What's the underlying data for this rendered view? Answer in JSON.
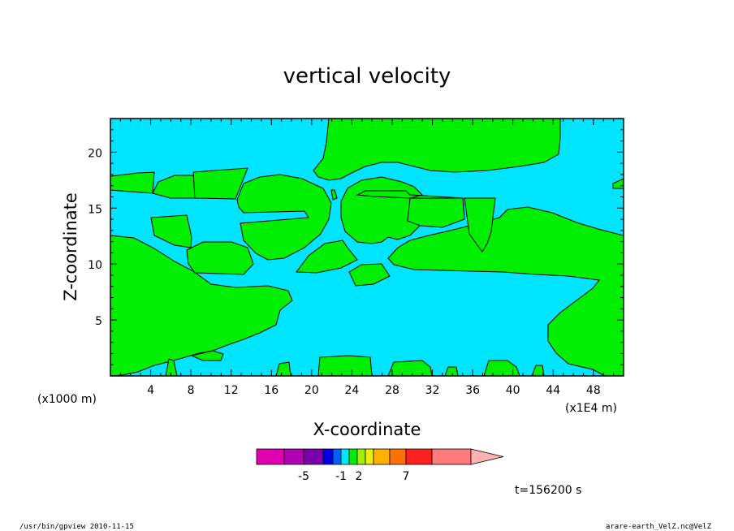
{
  "chart_data": {
    "type": "contour",
    "title": "vertical velocity",
    "xlabel": "X-coordinate",
    "ylabel": "Z-coordinate",
    "x_unit": "(x1E4 m)",
    "y_unit": "(x1000 m)",
    "xlim": [
      0,
      51
    ],
    "ylim": [
      0,
      23
    ],
    "x_ticks": [
      4,
      8,
      12,
      16,
      20,
      24,
      28,
      32,
      36,
      40,
      44,
      48
    ],
    "y_ticks": [
      5,
      10,
      15,
      20
    ],
    "fill_colors": {
      "negative_region": "#00e5ff",
      "positive_region": "#00ee00"
    },
    "colorbar": {
      "labels": [
        {
          "level": -5,
          "text": "-5"
        },
        {
          "level": -1,
          "text": "-1"
        },
        {
          "level": 2,
          "text": "2"
        },
        {
          "level": 7,
          "text": "7"
        }
      ],
      "colors": [
        "#e000b0",
        "#b000b0",
        "#7a00a8",
        "#0000e0",
        "#0060ff",
        "#00e5ff",
        "#00ee00",
        "#a0ee00",
        "#eeee00",
        "#ffb000",
        "#ff7000",
        "#ff2020",
        "#ff7a7a",
        "#ffb0b0"
      ]
    },
    "time_label": "t=156200 s"
  },
  "footer": {
    "left": "/usr/bin/gpview   2010-11-15",
    "right": "arare-earth_VelZ.nc@VelZ"
  }
}
